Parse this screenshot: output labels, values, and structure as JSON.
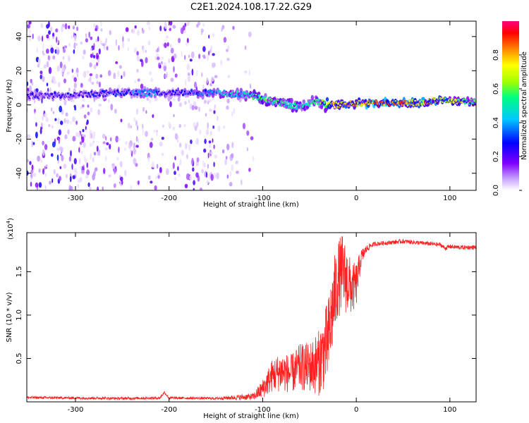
{
  "figure": {
    "title": "C2E1.2024.108.17.22.G29"
  },
  "chart_data": [
    {
      "type": "heatmap",
      "title": "C2E1.2024.108.17.22.G29",
      "xlabel": "Height of straight line (km)",
      "ylabel": "Frequency (Hz)",
      "xlim": [
        -352,
        128
      ],
      "ylim": [
        -50,
        49
      ],
      "x_ticks": [
        -300,
        -200,
        -100,
        0,
        100
      ],
      "x_tick_labels": [
        "-300",
        "-200",
        "-100",
        "0",
        "100"
      ],
      "y_ticks": [
        -40,
        -20,
        0,
        20,
        40
      ],
      "y_tick_labels": [
        "-40",
        "-20",
        "0",
        "20",
        "40"
      ],
      "colorbar": {
        "label": "Normalized spectral amplitude",
        "range": [
          0,
          1
        ],
        "ticks": [
          0.0,
          0.2,
          0.4,
          0.6,
          0.8
        ],
        "tick_labels": [
          "0.0",
          "0.2",
          "0.4",
          "0.6",
          "0.8"
        ],
        "colormap": [
          "#ffffff",
          "#c8a0ff",
          "#8000ff",
          "#0000ff",
          "#00c8ff",
          "#00ff80",
          "#a0ff00",
          "#ffff00",
          "#ff8000",
          "#ff0000",
          "#ff0080"
        ]
      },
      "ridge": {
        "x": [
          -350,
          -300,
          -250,
          -220,
          -200,
          -150,
          -120,
          -100,
          -80,
          -60,
          -40,
          -30,
          -20,
          0,
          20,
          50,
          80,
          90,
          100,
          128
        ],
        "y": [
          5,
          6,
          7,
          7,
          7,
          7,
          6,
          4,
          1,
          -1,
          2,
          0,
          0,
          1,
          1,
          1,
          2,
          3,
          2,
          2
        ],
        "level": [
          0.3,
          0.3,
          0.35,
          0.45,
          0.3,
          0.45,
          0.5,
          0.6,
          0.55,
          0.5,
          0.55,
          0.75,
          0.8,
          0.85,
          0.95,
          0.9,
          0.85,
          0.8,
          0.75,
          0.6
        ]
      },
      "noise_regions": [
        {
          "x_range": [
            -352,
            -275
          ],
          "density": 0.8
        },
        {
          "x_range": [
            -275,
            -210
          ],
          "density": 0.45
        },
        {
          "x_range": [
            -210,
            -150
          ],
          "density": 0.6
        },
        {
          "x_range": [
            -150,
            -110
          ],
          "density": 0.25
        }
      ]
    },
    {
      "type": "line",
      "xlabel": "Height of straight line (km)",
      "ylabel": "SNR (10 * v/v)",
      "y_multiplier": "(x10",
      "y_multiplier_exp": "4",
      "y_multiplier_close": ")",
      "xlim": [
        -352,
        128
      ],
      "ylim": [
        0,
        19500
      ],
      "x_ticks": [
        -300,
        -200,
        -100,
        0,
        100
      ],
      "x_tick_labels": [
        "-300",
        "-200",
        "-100",
        "0",
        "100"
      ],
      "y_ticks": [
        5000,
        10000,
        15000
      ],
      "y_tick_labels": [
        "0.5",
        "1.0",
        "1.5"
      ],
      "color": "#ff2020",
      "series": [
        {
          "x": [
            -352,
            -300,
            -250,
            -210,
            -205,
            -200,
            -150,
            -110,
            -100,
            -90,
            -80,
            -70,
            -60,
            -50,
            -40,
            -30,
            -25,
            -20,
            -15,
            -10,
            -5,
            0,
            5,
            10,
            15,
            20,
            30,
            40,
            50,
            60,
            70,
            80,
            90,
            95,
            100,
            110,
            128
          ],
          "y": [
            500,
            450,
            400,
            450,
            1100,
            450,
            400,
            600,
            1500,
            3000,
            3500,
            3200,
            4000,
            4000,
            4500,
            7000,
            11000,
            14000,
            15000,
            14000,
            13000,
            13500,
            16500,
            17500,
            18000,
            18200,
            18300,
            18400,
            18500,
            18400,
            18300,
            18200,
            18100,
            17700,
            17900,
            17800,
            17800
          ],
          "noise": [
            150,
            150,
            150,
            150,
            150,
            150,
            150,
            400,
            1100,
            1900,
            2300,
            2200,
            2700,
            2900,
            3800,
            5000,
            5000,
            4500,
            4500,
            4000,
            3000,
            2600,
            1100,
            500,
            300,
            250,
            250,
            250,
            250,
            250,
            250,
            250,
            250,
            250,
            250,
            250,
            250
          ]
        }
      ]
    }
  ]
}
